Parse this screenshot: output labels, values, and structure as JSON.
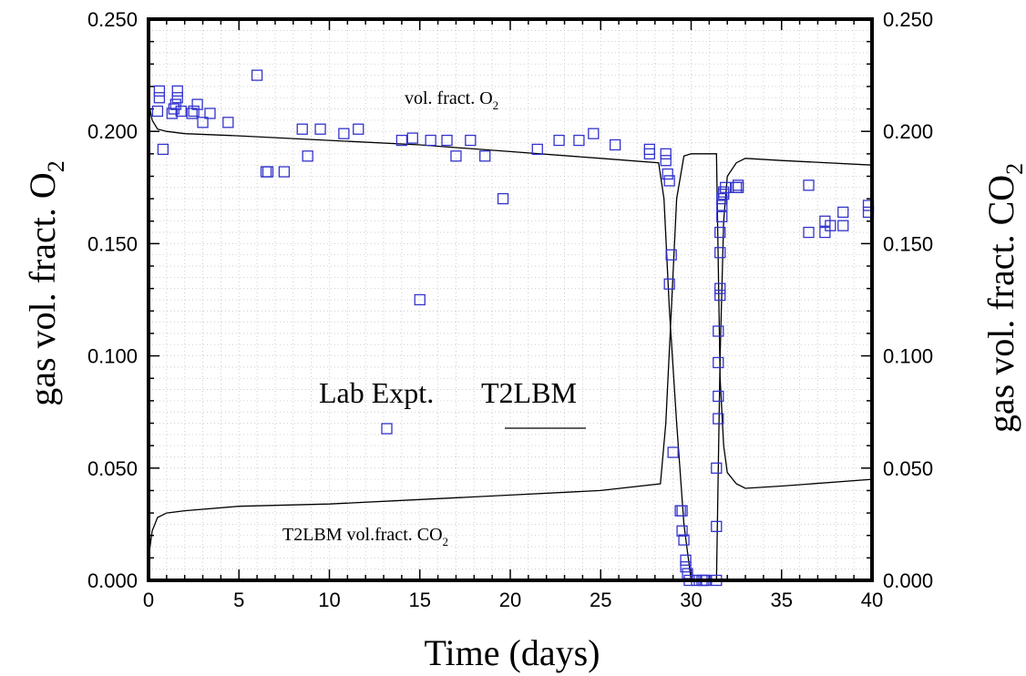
{
  "chart_data": {
    "type": "scatter",
    "xlabel": "Time (days)",
    "ylabel_left": {
      "text": "gas vol. fract. O",
      "sub": "2"
    },
    "ylabel_right": {
      "text": "gas vol. fract. CO",
      "sub": "2"
    },
    "xlim": [
      0,
      40
    ],
    "ylim": [
      0,
      0.25
    ],
    "x_ticks": [
      "0",
      "5",
      "10",
      "15",
      "20",
      "25",
      "30",
      "35",
      "40"
    ],
    "y_ticks": [
      "0.000",
      "0.050",
      "0.100",
      "0.150",
      "0.200",
      "0.250"
    ],
    "grid": true,
    "annotations": {
      "o2": {
        "text": "vol. fract. O",
        "sub": "2"
      },
      "co2": {
        "text": "T2LBM vol.fract. CO",
        "sub": "2"
      }
    },
    "legend": {
      "lab": "Lab Expt.",
      "model": "T2LBM"
    },
    "series": [
      {
        "name": "Lab Expt.",
        "type": "scatter",
        "marker": "square",
        "color": "#3333cc",
        "points": [
          [
            0.5,
            0.209
          ],
          [
            0.6,
            0.215
          ],
          [
            0.6,
            0.218
          ],
          [
            0.8,
            0.192
          ],
          [
            1.3,
            0.208
          ],
          [
            1.4,
            0.21
          ],
          [
            1.5,
            0.212
          ],
          [
            1.6,
            0.215
          ],
          [
            1.6,
            0.218
          ],
          [
            1.8,
            0.209
          ],
          [
            2.4,
            0.208
          ],
          [
            2.5,
            0.209
          ],
          [
            2.7,
            0.212
          ],
          [
            3.0,
            0.204
          ],
          [
            3.4,
            0.208
          ],
          [
            4.4,
            0.204
          ],
          [
            6.0,
            0.225
          ],
          [
            6.5,
            0.182
          ],
          [
            6.6,
            0.182
          ],
          [
            7.5,
            0.182
          ],
          [
            8.5,
            0.201
          ],
          [
            8.8,
            0.189
          ],
          [
            9.5,
            0.201
          ],
          [
            10.8,
            0.199
          ],
          [
            11.6,
            0.201
          ],
          [
            14.0,
            0.196
          ],
          [
            14.6,
            0.197
          ],
          [
            15.0,
            0.125
          ],
          [
            15.6,
            0.196
          ],
          [
            16.5,
            0.196
          ],
          [
            17.0,
            0.189
          ],
          [
            17.8,
            0.196
          ],
          [
            18.6,
            0.189
          ],
          [
            19.6,
            0.17
          ],
          [
            21.5,
            0.192
          ],
          [
            22.7,
            0.196
          ],
          [
            23.8,
            0.196
          ],
          [
            24.6,
            0.199
          ],
          [
            25.8,
            0.194
          ],
          [
            27.7,
            0.192
          ],
          [
            27.7,
            0.19
          ],
          [
            28.6,
            0.19
          ],
          [
            28.6,
            0.187
          ],
          [
            28.7,
            0.181
          ],
          [
            28.8,
            0.178
          ],
          [
            28.8,
            0.132
          ],
          [
            28.9,
            0.145
          ],
          [
            29.0,
            0.057
          ],
          [
            29.4,
            0.031
          ],
          [
            29.5,
            0.031
          ],
          [
            29.5,
            0.022
          ],
          [
            29.6,
            0.018
          ],
          [
            29.7,
            0.009
          ],
          [
            29.7,
            0.006
          ],
          [
            29.8,
            0.003
          ],
          [
            29.9,
            0.0
          ],
          [
            30.3,
            0.0
          ],
          [
            30.6,
            0.0
          ],
          [
            30.7,
            0.0
          ],
          [
            30.8,
            0.0
          ],
          [
            31.4,
            0.0
          ],
          [
            31.4,
            0.024
          ],
          [
            31.4,
            0.05
          ],
          [
            31.5,
            0.072
          ],
          [
            31.5,
            0.082
          ],
          [
            31.5,
            0.097
          ],
          [
            31.5,
            0.111
          ],
          [
            31.6,
            0.127
          ],
          [
            31.6,
            0.13
          ],
          [
            31.6,
            0.146
          ],
          [
            31.6,
            0.155
          ],
          [
            31.7,
            0.162
          ],
          [
            31.7,
            0.167
          ],
          [
            31.7,
            0.17
          ],
          [
            31.8,
            0.172
          ],
          [
            31.8,
            0.173
          ],
          [
            31.9,
            0.175
          ],
          [
            32.5,
            0.175
          ],
          [
            32.6,
            0.176
          ],
          [
            32.6,
            0.175
          ],
          [
            36.5,
            0.176
          ],
          [
            36.5,
            0.155
          ],
          [
            37.4,
            0.16
          ],
          [
            37.4,
            0.155
          ],
          [
            37.7,
            0.158
          ],
          [
            38.4,
            0.164
          ],
          [
            38.4,
            0.158
          ],
          [
            39.8,
            0.167
          ],
          [
            39.8,
            0.164
          ]
        ]
      },
      {
        "name": "T2LBM",
        "type": "line",
        "color": "#000000",
        "points": [
          [
            0.0,
            0.213
          ],
          [
            0.2,
            0.205
          ],
          [
            0.5,
            0.201
          ],
          [
            1.0,
            0.2
          ],
          [
            2.0,
            0.199
          ],
          [
            5.0,
            0.198
          ],
          [
            10.0,
            0.196
          ],
          [
            15.0,
            0.194
          ],
          [
            20.0,
            0.191
          ],
          [
            25.0,
            0.188
          ],
          [
            28.2,
            0.186
          ],
          [
            28.5,
            0.17
          ],
          [
            28.8,
            0.12
          ],
          [
            29.2,
            0.07
          ],
          [
            29.6,
            0.025
          ],
          [
            30.0,
            0.0
          ],
          [
            30.5,
            0.0
          ],
          [
            31.0,
            0.0
          ],
          [
            31.4,
            0.0
          ],
          [
            31.6,
            0.1
          ],
          [
            31.8,
            0.16
          ],
          [
            32.0,
            0.18
          ],
          [
            32.5,
            0.186
          ],
          [
            33.0,
            0.188
          ],
          [
            35.0,
            0.187
          ],
          [
            40.0,
            0.185
          ]
        ]
      },
      {
        "name": "T2LBM vol.fract. CO2",
        "type": "line",
        "color": "#000000",
        "points": [
          [
            0.0,
            0.01
          ],
          [
            0.2,
            0.022
          ],
          [
            0.5,
            0.028
          ],
          [
            1.0,
            0.03
          ],
          [
            2.0,
            0.031
          ],
          [
            5.0,
            0.033
          ],
          [
            10.0,
            0.034
          ],
          [
            15.0,
            0.036
          ],
          [
            20.0,
            0.038
          ],
          [
            25.0,
            0.04
          ],
          [
            28.3,
            0.043
          ],
          [
            28.6,
            0.07
          ],
          [
            28.9,
            0.12
          ],
          [
            29.2,
            0.17
          ],
          [
            29.6,
            0.189
          ],
          [
            30.0,
            0.19
          ],
          [
            30.5,
            0.19
          ],
          [
            31.0,
            0.19
          ],
          [
            31.4,
            0.19
          ],
          [
            31.6,
            0.09
          ],
          [
            31.8,
            0.06
          ],
          [
            32.0,
            0.048
          ],
          [
            32.5,
            0.043
          ],
          [
            33.0,
            0.041
          ],
          [
            35.0,
            0.042
          ],
          [
            40.0,
            0.045
          ]
        ]
      }
    ]
  }
}
